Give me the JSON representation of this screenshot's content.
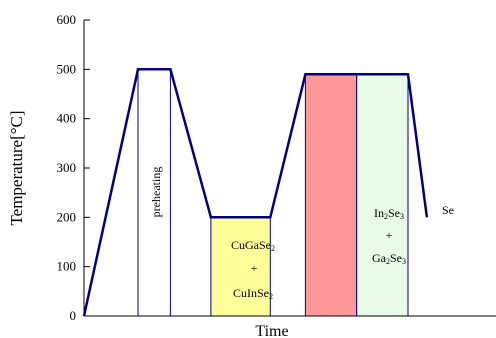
{
  "chart_data": {
    "type": "line",
    "ylabel": "Temperature[°C]",
    "xlabel": "Time",
    "ylim": [
      0,
      600
    ],
    "yticks": [
      0,
      100,
      200,
      300,
      400,
      500,
      600
    ],
    "grid": false,
    "legend": "none",
    "line_color": "#000080",
    "profile": {
      "points_time_index": [
        0,
        1,
        1.6,
        2.35,
        3.45,
        4.1,
        5.05,
        6.0,
        6.35
      ],
      "temperatures": [
        0,
        500,
        500,
        200,
        200,
        490,
        490,
        490,
        200
      ]
    },
    "regions": [
      {
        "name": "preheating",
        "label": "preheating",
        "start": 1.0,
        "end": 1.6,
        "top": 500,
        "fill": "#ffffff",
        "orientation": "vertical"
      },
      {
        "name": "cugase2-cuinse2",
        "line1": "CuGaSe",
        "sub1": "2",
        "plus": "+",
        "line2": "CuInSe",
        "sub2": "2",
        "start": 2.35,
        "end": 3.45,
        "top": 200,
        "fill": "#ffff99"
      },
      {
        "name": "in2se3-ga2se3",
        "line1a": "In",
        "sub1a": "2",
        "line1b": "Se",
        "sub1b": "3",
        "plus": "+",
        "line2a": "Ga",
        "sub2a": "2",
        "line2b": "Se",
        "sub2b": "3",
        "start": 4.1,
        "end": 5.05,
        "top": 490,
        "fill": "#ff9999"
      },
      {
        "name": "se",
        "label": "Se",
        "start": 5.05,
        "end": 6.0,
        "top": 490,
        "fill": "#e8fae8"
      }
    ]
  }
}
